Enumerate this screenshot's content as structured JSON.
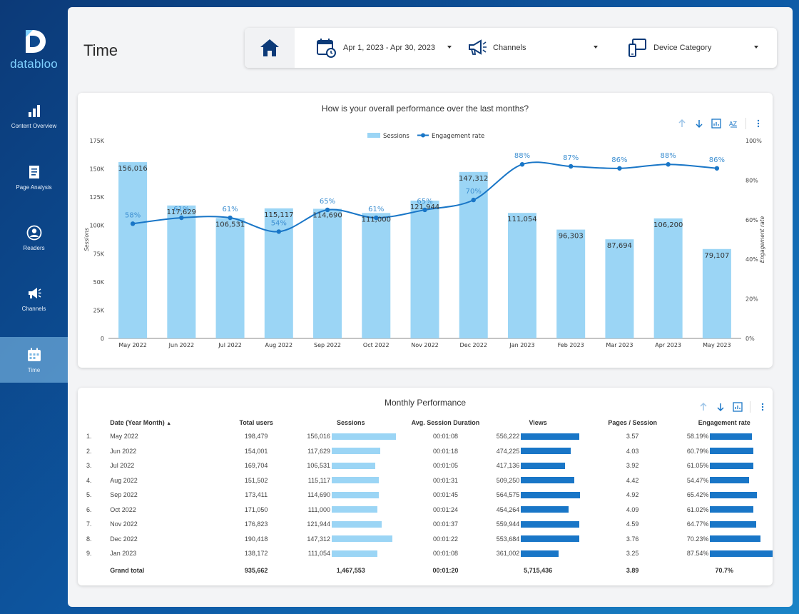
{
  "sidebar": {
    "brand": "databloo",
    "items": [
      {
        "label": "Content Overview",
        "icon": "bar-chart-icon"
      },
      {
        "label": "Page Analysis",
        "icon": "document-icon"
      },
      {
        "label": "Readers",
        "icon": "user-icon"
      },
      {
        "label": "Channels",
        "icon": "megaphone-icon"
      },
      {
        "label": "Time",
        "icon": "calendar-icon",
        "active": true
      }
    ]
  },
  "header": {
    "title": "Time",
    "filters": {
      "date_range": "Apr 1, 2023 - Apr 30, 2023",
      "channels": "Channels",
      "device": "Device Category"
    }
  },
  "colors": {
    "sessions_bar": "#9bd5f5",
    "engagement_line": "#1976c7",
    "views_bar": "#1976c7"
  },
  "chart_data": {
    "type": "bar",
    "title": "How is your overall performance over the last months?",
    "categories": [
      "May 2022",
      "Jun 2022",
      "Jul 2022",
      "Aug 2022",
      "Sep 2022",
      "Oct 2022",
      "Nov 2022",
      "Dec 2022",
      "Jan 2023",
      "Feb 2023",
      "Mar 2023",
      "Apr 2023",
      "May 2023"
    ],
    "series": [
      {
        "name": "Sessions",
        "type": "bar",
        "axis": "left",
        "values": [
          156016,
          117629,
          106531,
          115117,
          114690,
          111000,
          121944,
          147312,
          111054,
          96303,
          87694,
          106200,
          79107
        ],
        "labels": [
          "156,016",
          "117,629",
          "106,531",
          "115,117",
          "114,690",
          "111,000",
          "121,944",
          "147,312",
          "111,054",
          "96,303",
          "87,694",
          "106,200",
          "79,107"
        ]
      },
      {
        "name": "Engagement rate",
        "type": "line",
        "axis": "right",
        "values": [
          58,
          61,
          61,
          54,
          65,
          61,
          65,
          70,
          88,
          87,
          86,
          88,
          86
        ],
        "labels": [
          "58%",
          "61%",
          "61%",
          "54%",
          "65%",
          "61%",
          "65%",
          "70%",
          "88%",
          "87%",
          "86%",
          "88%",
          "86%"
        ]
      }
    ],
    "ylabel": "Sessions",
    "y2label": "Engagement rate",
    "ylim": [
      0,
      175000
    ],
    "y2lim": [
      0,
      100
    ],
    "yticks": [
      "0",
      "25K",
      "50K",
      "75K",
      "100K",
      "125K",
      "150K",
      "175K"
    ],
    "y2ticks": [
      "0%",
      "20%",
      "40%",
      "60%",
      "80%",
      "100%"
    ],
    "legend_position": "top-center"
  },
  "table": {
    "title": "Monthly Performance",
    "columns": [
      "Date (Year Month)",
      "Total users",
      "Sessions",
      "Avg. Session Duration",
      "Views",
      "Pages / Session",
      "Engagement rate"
    ],
    "rows": [
      {
        "idx": "1.",
        "date": "May 2022",
        "users": "198,479",
        "sessions": "156,016",
        "s": 156016,
        "dur": "00:01:08",
        "views": "556,222",
        "v": 556222,
        "pps": "3.57",
        "er": "58.19%",
        "e": 58.19
      },
      {
        "idx": "2.",
        "date": "Jun 2022",
        "users": "154,001",
        "sessions": "117,629",
        "s": 117629,
        "dur": "00:01:18",
        "views": "474,225",
        "v": 474225,
        "pps": "4.03",
        "er": "60.79%",
        "e": 60.79
      },
      {
        "idx": "3.",
        "date": "Jul 2022",
        "users": "169,704",
        "sessions": "106,531",
        "s": 106531,
        "dur": "00:01:05",
        "views": "417,136",
        "v": 417136,
        "pps": "3.92",
        "er": "61.05%",
        "e": 61.05
      },
      {
        "idx": "4.",
        "date": "Aug 2022",
        "users": "151,502",
        "sessions": "115,117",
        "s": 115117,
        "dur": "00:01:31",
        "views": "509,250",
        "v": 509250,
        "pps": "4.42",
        "er": "54.47%",
        "e": 54.47
      },
      {
        "idx": "5.",
        "date": "Sep 2022",
        "users": "173,411",
        "sessions": "114,690",
        "s": 114690,
        "dur": "00:01:45",
        "views": "564,575",
        "v": 564575,
        "pps": "4.92",
        "er": "65.42%",
        "e": 65.42
      },
      {
        "idx": "6.",
        "date": "Oct 2022",
        "users": "171,050",
        "sessions": "111,000",
        "s": 111000,
        "dur": "00:01:24",
        "views": "454,264",
        "v": 454264,
        "pps": "4.09",
        "er": "61.02%",
        "e": 61.02
      },
      {
        "idx": "7.",
        "date": "Nov 2022",
        "users": "176,823",
        "sessions": "121,944",
        "s": 121944,
        "dur": "00:01:37",
        "views": "559,944",
        "v": 559944,
        "pps": "4.59",
        "er": "64.77%",
        "e": 64.77
      },
      {
        "idx": "8.",
        "date": "Dec 2022",
        "users": "190,418",
        "sessions": "147,312",
        "s": 147312,
        "dur": "00:01:22",
        "views": "553,684",
        "v": 553684,
        "pps": "3.76",
        "er": "70.23%",
        "e": 70.23
      },
      {
        "idx": "9.",
        "date": "Jan 2023",
        "users": "138,172",
        "sessions": "111,054",
        "s": 111054,
        "dur": "00:01:08",
        "views": "361,002",
        "v": 361002,
        "pps": "3.25",
        "er": "87.54%",
        "e": 87.54
      }
    ],
    "total": {
      "label": "Grand total",
      "users": "935,662",
      "sessions": "1,467,553",
      "dur": "00:01:20",
      "views": "5,715,436",
      "pps": "3.89",
      "er": "70.7%"
    }
  }
}
